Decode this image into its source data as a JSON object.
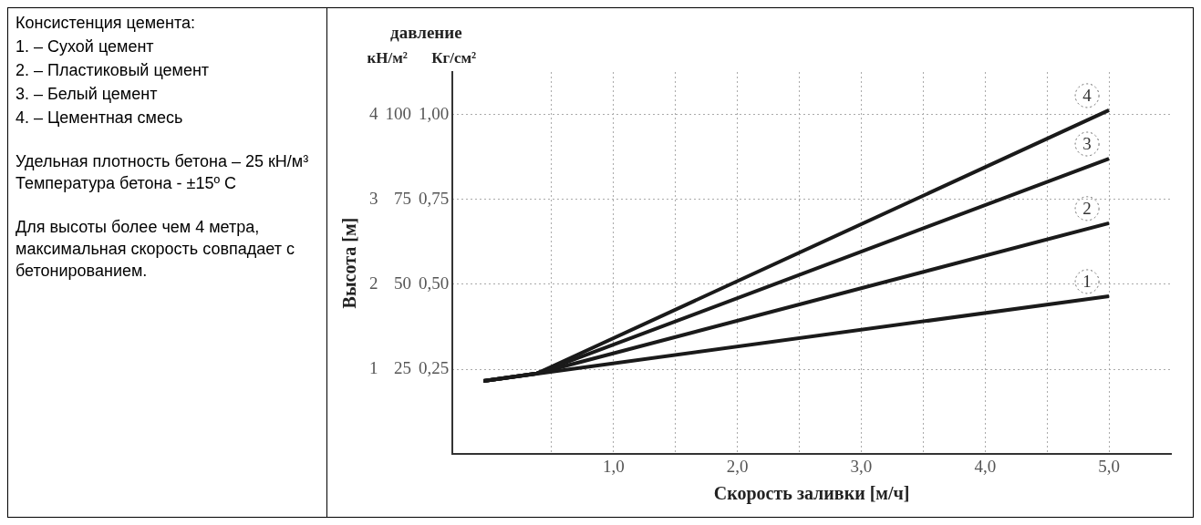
{
  "chart_data": [
    {
      "type": "other",
      "title": "Консистенция цемента:",
      "annotations": [
        "1. – Сухой цемент",
        "2. – Пластиковый цемент",
        "3. – Белый цемент",
        "4. – Цементная смесь",
        "Удельная плотность бетона – 25 кН/м³\nТемпература бетона - ±15º C",
        "Для высоты более чем 4 метра, максимальная скорость совпадает с бетонированием."
      ]
    },
    {
      "type": "line",
      "xlabel": "Скорость заливки [м/ч]",
      "ylabel": "Высота [м]",
      "y2label": "кН/м²",
      "y3label": "Кг/см²",
      "annotations": [
        "давление"
      ],
      "xlim": [
        -0.3,
        5.5
      ],
      "xticks": [
        {
          "value": 0.5,
          "label": null
        },
        {
          "value": 1,
          "label": "1,0"
        },
        {
          "value": 1.5,
          "label": null
        },
        {
          "value": 2,
          "label": "2,0"
        },
        {
          "value": 2.5,
          "label": null
        },
        {
          "value": 3,
          "label": "3,0"
        },
        {
          "value": 3.5,
          "label": null
        },
        {
          "value": 4,
          "label": "4,0"
        },
        {
          "value": 4.5,
          "label": null
        },
        {
          "value": 5,
          "label": "5,0"
        }
      ],
      "ylim": [
        0,
        4.5
      ],
      "yticks": [
        1,
        2,
        3,
        4
      ],
      "y2lim": [
        0,
        112.5
      ],
      "y2ticks": [
        25,
        50,
        75,
        100
      ],
      "y3lim": [
        0,
        1.125
      ],
      "y3ticks": [
        {
          "value": 0.25,
          "label": "0,25"
        },
        {
          "value": 0.5,
          "label": "0,50"
        },
        {
          "value": 0.75,
          "label": "0,75"
        },
        {
          "value": 1,
          "label": "1,00"
        }
      ],
      "grid": true,
      "legend": false,
      "marker": "none",
      "line_style": "solid",
      "series": [
        {
          "name": "1",
          "color": "#1a1a1a",
          "x": [
            -0.05,
            5
          ],
          "values": [
            0.86,
            1.86
          ]
        },
        {
          "name": "2",
          "color": "#1a1a1a",
          "x": [
            -0.05,
            0.38,
            5
          ],
          "values": [
            0.86,
            0.95,
            2.72
          ]
        },
        {
          "name": "3",
          "color": "#1a1a1a",
          "x": [
            -0.05,
            0.38,
            5
          ],
          "values": [
            0.86,
            0.95,
            3.48
          ]
        },
        {
          "name": "4",
          "color": "#1a1a1a",
          "x": [
            -0.05,
            0.38,
            5
          ],
          "values": [
            0.86,
            0.95,
            4.05
          ]
        }
      ]
    }
  ]
}
